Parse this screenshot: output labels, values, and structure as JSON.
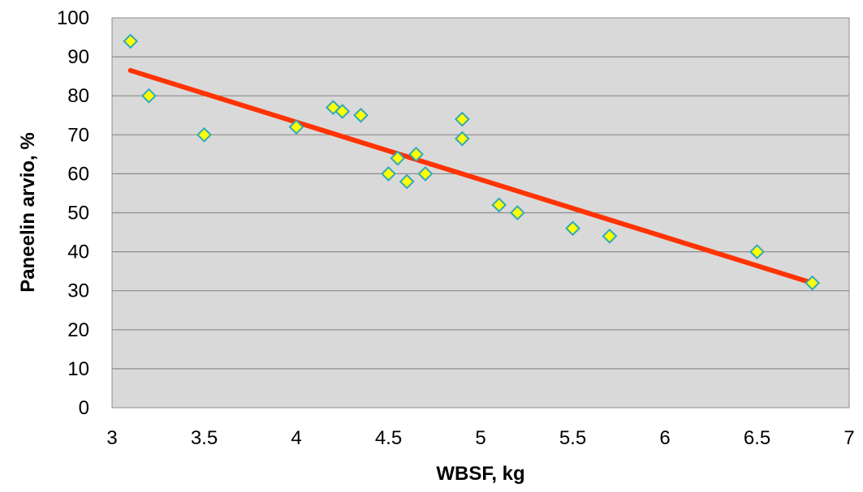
{
  "chart_data": {
    "type": "scatter",
    "title": "",
    "xlabel": "WBSF, kg",
    "ylabel": "Paneelin arvio, %",
    "xlim": [
      3,
      7
    ],
    "ylim": [
      0,
      100
    ],
    "xticks": [
      "3",
      "3.5",
      "4",
      "4.5",
      "5",
      "5.5",
      "6",
      "6.5",
      "7"
    ],
    "yticks": [
      "0",
      "10",
      "20",
      "30",
      "40",
      "50",
      "60",
      "70",
      "80",
      "90",
      "100"
    ],
    "grid": "horizontal",
    "colors": {
      "plot_background": "#d9d9d9",
      "marker_fill": "#ffff00",
      "marker_edge": "#31a9b8",
      "trendline": "#ff3300",
      "gridline": "#8c8c8c"
    },
    "series": [
      {
        "marker": "diamond",
        "points": [
          [
            3.1,
            94
          ],
          [
            3.2,
            80
          ],
          [
            3.5,
            70
          ],
          [
            4.0,
            72
          ],
          [
            4.2,
            77
          ],
          [
            4.25,
            76
          ],
          [
            4.35,
            75
          ],
          [
            4.5,
            60
          ],
          [
            4.55,
            64
          ],
          [
            4.6,
            58
          ],
          [
            4.65,
            65
          ],
          [
            4.7,
            60
          ],
          [
            4.9,
            74
          ],
          [
            4.9,
            69
          ],
          [
            5.1,
            52
          ],
          [
            5.2,
            50
          ],
          [
            5.5,
            46
          ],
          [
            5.7,
            44
          ],
          [
            6.5,
            40
          ],
          [
            6.8,
            32
          ]
        ]
      }
    ],
    "trendline": {
      "type": "linear",
      "x": [
        3.1,
        6.8
      ],
      "y": [
        86.5,
        32
      ]
    }
  }
}
